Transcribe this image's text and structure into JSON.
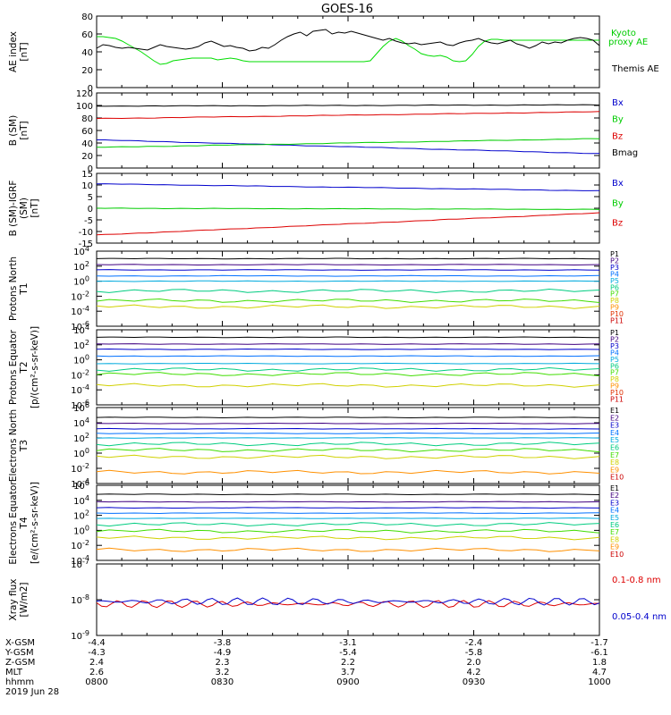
{
  "title": "GOES-16",
  "chart_data": [
    {
      "type": "line",
      "ylabel": "AE index [nT]",
      "ylim": [
        0,
        80
      ],
      "yticks": [
        "0",
        "20",
        "40",
        "60",
        "80"
      ],
      "series": [
        {
          "name": "Kyoto proxy AE",
          "color": "#00dd00",
          "values": [
            57,
            57,
            56,
            55,
            52,
            48,
            44,
            40,
            35,
            30,
            26,
            27,
            30,
            31,
            32,
            33,
            33,
            33,
            33,
            31,
            32,
            33,
            32,
            30,
            29,
            29,
            29,
            29,
            29,
            29,
            29,
            29,
            29,
            29,
            29,
            29,
            29,
            29,
            29,
            29,
            29,
            29,
            29,
            30,
            38,
            46,
            52,
            55,
            52,
            47,
            43,
            38,
            36,
            35,
            36,
            34,
            30,
            29,
            30,
            37,
            46,
            52,
            54,
            54,
            53,
            53,
            53,
            53,
            53,
            53,
            53,
            53,
            53,
            53,
            53,
            53,
            53,
            53,
            53,
            53
          ]
        },
        {
          "name": "Themis AE",
          "color": "#000000",
          "values": [
            44,
            48,
            47,
            45,
            44,
            45,
            44,
            43,
            42,
            45,
            48,
            46,
            45,
            44,
            43,
            44,
            46,
            50,
            52,
            49,
            46,
            47,
            45,
            44,
            41,
            42,
            45,
            44,
            48,
            53,
            57,
            60,
            62,
            58,
            63,
            64,
            65,
            60,
            62,
            61,
            63,
            61,
            59,
            57,
            55,
            53,
            55,
            52,
            50,
            49,
            50,
            48,
            49,
            50,
            51,
            48,
            47,
            50,
            52,
            53,
            55,
            52,
            50,
            49,
            51,
            53,
            49,
            47,
            44,
            47,
            51,
            49,
            51,
            50,
            53,
            55,
            56,
            55,
            53,
            47
          ]
        }
      ],
      "legend": [
        "Kyoto proxy AE",
        "Themis AE"
      ]
    },
    {
      "type": "line",
      "ylabel": "B (SM) [nT]",
      "ylim": [
        0,
        120
      ],
      "yticks": [
        "0",
        "20",
        "40",
        "60",
        "80",
        "100",
        "120"
      ],
      "series": [
        {
          "name": "Bx",
          "color": "#0000cc",
          "start": 45,
          "end": 23
        },
        {
          "name": "By",
          "color": "#00cc00",
          "start": 33,
          "end": 47
        },
        {
          "name": "Bz",
          "color": "#dd0000",
          "start": 79,
          "end": 90
        },
        {
          "name": "Bmag",
          "color": "#000000",
          "start": 99,
          "end": 101
        }
      ],
      "legend": [
        "Bx",
        "By",
        "Bz",
        "Bmag"
      ]
    },
    {
      "type": "line",
      "ylabel": "B (SM)-IGRF (SM) [nT]",
      "ylim": [
        -15,
        15
      ],
      "yticks": [
        "-15",
        "-10",
        "-5",
        "0",
        "5",
        "10",
        "15"
      ],
      "series": [
        {
          "name": "Bx",
          "color": "#0000cc",
          "start": 10.5,
          "end": 7.5
        },
        {
          "name": "By",
          "color": "#00cc00",
          "start": 0,
          "end": -0.5
        },
        {
          "name": "Bz",
          "color": "#dd0000",
          "start": -11.5,
          "end": -2
        }
      ],
      "legend": [
        "Bx",
        "By",
        "Bz"
      ]
    },
    {
      "type": "line",
      "log": true,
      "ylabel": "Protons North T1",
      "ylim_exp": [
        -6,
        4
      ],
      "yticks": [
        "10^-6",
        "10^-4",
        "10^-2",
        "10^0",
        "10^2",
        "10^4"
      ],
      "channels": [
        "P1",
        "P2",
        "P3",
        "P4",
        "P5",
        "P6",
        "P7",
        "P8",
        "P9",
        "P10",
        "P11"
      ],
      "channel_colors": [
        "#000000",
        "#400080",
        "#0000cc",
        "#0070ff",
        "#00aadd",
        "#00cc80",
        "#40dd00",
        "#d0d000",
        "#ff9000",
        "#e03000",
        "#cc0000"
      ],
      "levels_exp": [
        3.0,
        2.2,
        1.5,
        0.7,
        0,
        -1.3,
        -2.6,
        -3.4
      ]
    },
    {
      "type": "line",
      "log": true,
      "ylabel": "Protons Equator T2 [p/(cm²-s-sr-keV)]",
      "ylim_exp": [
        -6,
        4
      ],
      "yticks": [
        "10^-6",
        "10^-4",
        "10^-2",
        "10^0",
        "10^2",
        "10^4"
      ],
      "channels": [
        "P1",
        "P2",
        "P3",
        "P4",
        "P5",
        "P6",
        "P7",
        "P8",
        "P9",
        "P10",
        "P11"
      ],
      "channel_colors": [
        "#000000",
        "#400080",
        "#0000cc",
        "#0070ff",
        "#00aadd",
        "#00cc80",
        "#40dd00",
        "#d0d000",
        "#ff9000",
        "#e03000",
        "#cc0000"
      ],
      "levels_exp": [
        3.0,
        2.1,
        1.4,
        0.5,
        -0.5,
        -1.3,
        -1.9,
        -3.4
      ]
    },
    {
      "type": "line",
      "log": true,
      "ylabel": "Electrons North T3",
      "ylim_exp": [
        -4,
        6
      ],
      "yticks": [
        "10^-4",
        "10^-2",
        "10^0",
        "10^2",
        "10^4",
        "10^6"
      ],
      "channels": [
        "E1",
        "E2",
        "E3",
        "E4",
        "E5",
        "E6",
        "E7",
        "E8",
        "E9",
        "E10"
      ],
      "channel_colors": [
        "#000000",
        "#400080",
        "#0000cc",
        "#0070ff",
        "#00aadd",
        "#00cc80",
        "#40dd00",
        "#d0d000",
        "#ff9000",
        "#cc0000"
      ],
      "levels_exp": [
        4.7,
        3.9,
        3.2,
        2.6,
        2.0,
        1.2,
        0.4,
        -0.5,
        -2.5
      ]
    },
    {
      "type": "line",
      "log": true,
      "ylabel": "Electrons Equator T4 [e/(cm²-s-sr-keV)]",
      "ylim_exp": [
        -4,
        6
      ],
      "yticks": [
        "10^-4",
        "10^-2",
        "10^0",
        "10^2",
        "10^4",
        "10^6"
      ],
      "channels": [
        "E1",
        "E2",
        "E3",
        "E4",
        "E5",
        "E6",
        "E7",
        "E8",
        "E9",
        "E10"
      ],
      "channel_colors": [
        "#000000",
        "#400080",
        "#0000cc",
        "#0070ff",
        "#00aadd",
        "#00cc80",
        "#40dd00",
        "#d0d000",
        "#ff9000",
        "#cc0000"
      ],
      "levels_exp": [
        4.8,
        3.8,
        3.0,
        2.3,
        1.6,
        0.8,
        -0.1,
        -1.0,
        -2.6
      ]
    },
    {
      "type": "line",
      "log": true,
      "ylabel": "Xray flux [W/m2]",
      "ylim_exp": [
        -9,
        -7
      ],
      "yticks": [
        "10^-9",
        "10^-8",
        "10^-7"
      ],
      "series": [
        {
          "name": "0.1-0.8 nm",
          "color": "#dd0000",
          "level_exp": -8.12
        },
        {
          "name": "0.05-0.4 nm",
          "color": "#0000cc",
          "level_exp": -8.05
        }
      ],
      "legend": [
        "0.1-0.8 nm",
        "0.05-0.4 nm"
      ]
    }
  ],
  "x_axis": {
    "row_labels": [
      "X-GSM",
      "Y-GSM",
      "Z-GSM",
      "MLT",
      "hhmm",
      "2019 Jun 28"
    ],
    "columns": [
      [
        "-4.4",
        "-4.3",
        "2.4",
        "2.6",
        "0800"
      ],
      [
        "-3.8",
        "-4.9",
        "2.3",
        "3.2",
        "0830"
      ],
      [
        "-3.1",
        "-5.4",
        "2.2",
        "3.7",
        "0900"
      ],
      [
        "-2.4",
        "-5.8",
        "2.0",
        "4.2",
        "0930"
      ],
      [
        "-1.7",
        "-6.1",
        "1.8",
        "4.7",
        "1000"
      ]
    ]
  }
}
